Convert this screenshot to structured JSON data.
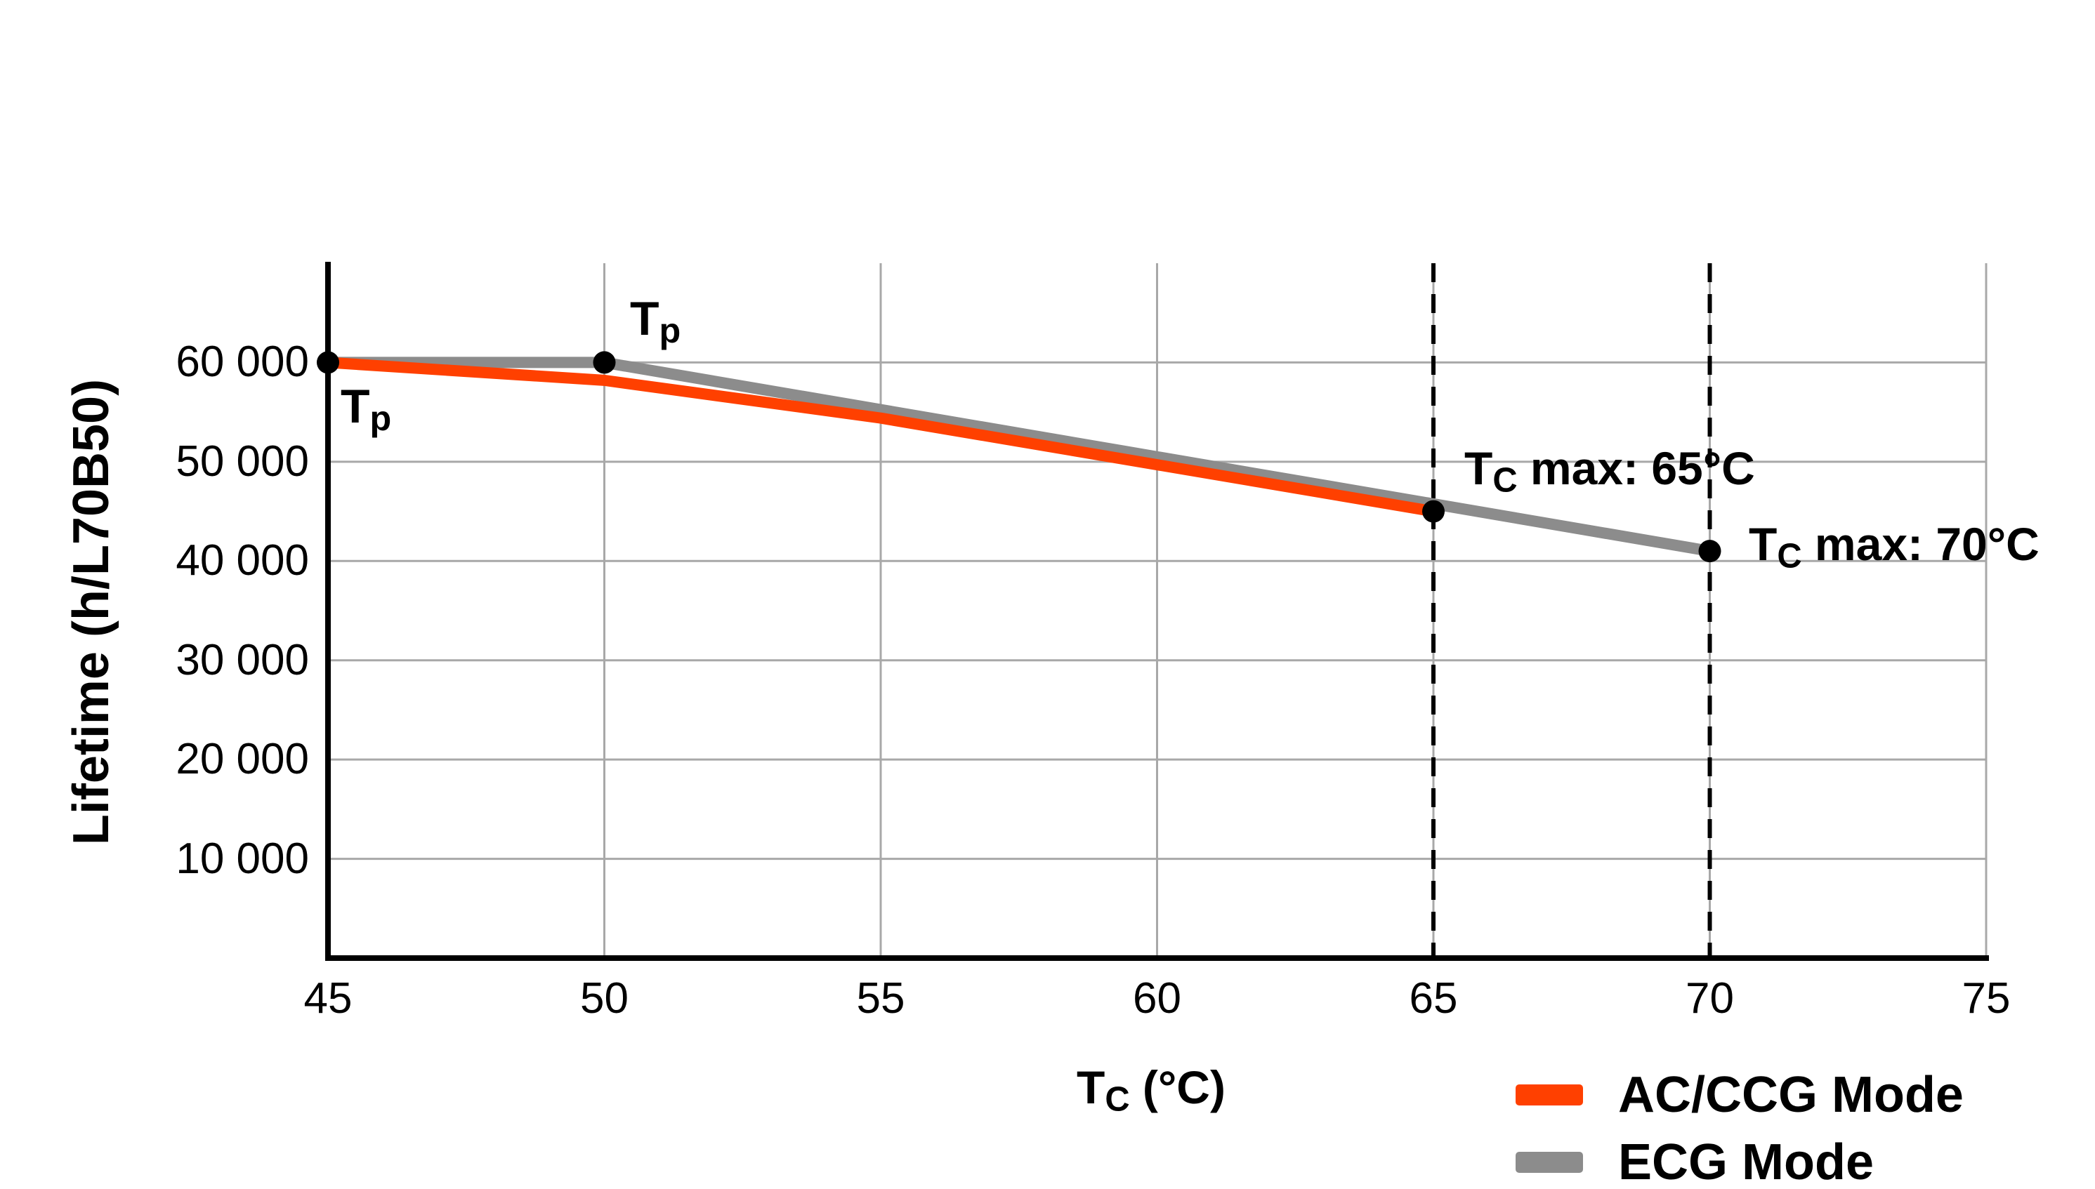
{
  "chart_data": {
    "type": "line",
    "title": "",
    "ylabel": "Lifetime (h/L70B50)",
    "xlabel": {
      "main": "T",
      "sub": "C",
      "rest": " (°C)"
    },
    "xlim": [
      45,
      75
    ],
    "ylim": [
      0,
      70000
    ],
    "xticks": [
      45,
      50,
      55,
      60,
      65,
      70,
      75
    ],
    "xtick_labels": [
      "45",
      "50",
      "55",
      "60",
      "65",
      "70",
      "75"
    ],
    "yticks": [
      10000,
      20000,
      30000,
      40000,
      50000,
      60000
    ],
    "ytick_labels": [
      "10 000",
      "20 000",
      "30 000",
      "40 000",
      "50 000",
      "60 000"
    ],
    "grid": true,
    "grid_color": "#A8A8A8",
    "axis_color": "#000000",
    "background": "#FFFFFF",
    "series": [
      {
        "name": "AC/CCG Mode",
        "color": "#FF4000",
        "x": [
          45,
          50,
          55,
          60,
          65
        ],
        "y": [
          60000,
          58200,
          54400,
          49700,
          45000
        ]
      },
      {
        "name": "ECG Mode",
        "color": "#8C8C8C",
        "x": [
          45,
          50,
          70
        ],
        "y": [
          60000,
          60000,
          41000
        ]
      }
    ],
    "markers": {
      "color": "#000000",
      "points": [
        [
          45,
          60000
        ],
        [
          50,
          60000
        ],
        [
          65,
          45000
        ],
        [
          70,
          41000
        ]
      ]
    },
    "dashed_guides": [
      {
        "x": 65
      },
      {
        "x": 70
      }
    ],
    "annotations": [
      {
        "id": "tp1",
        "main": "T",
        "sub": "p",
        "rest": ""
      },
      {
        "id": "tp2",
        "main": "T",
        "sub": "p",
        "rest": ""
      },
      {
        "id": "tc65",
        "main": "T",
        "sub": "C",
        "rest": " max: 65°C"
      },
      {
        "id": "tc70",
        "main": "T",
        "sub": "C",
        "rest": " max: 70°C"
      }
    ],
    "legend": {
      "position": "bottom-right",
      "items": [
        {
          "label": "AC/CCG Mode",
          "color": "#FF4000"
        },
        {
          "label": "ECG Mode",
          "color": "#8C8C8C"
        }
      ]
    }
  }
}
